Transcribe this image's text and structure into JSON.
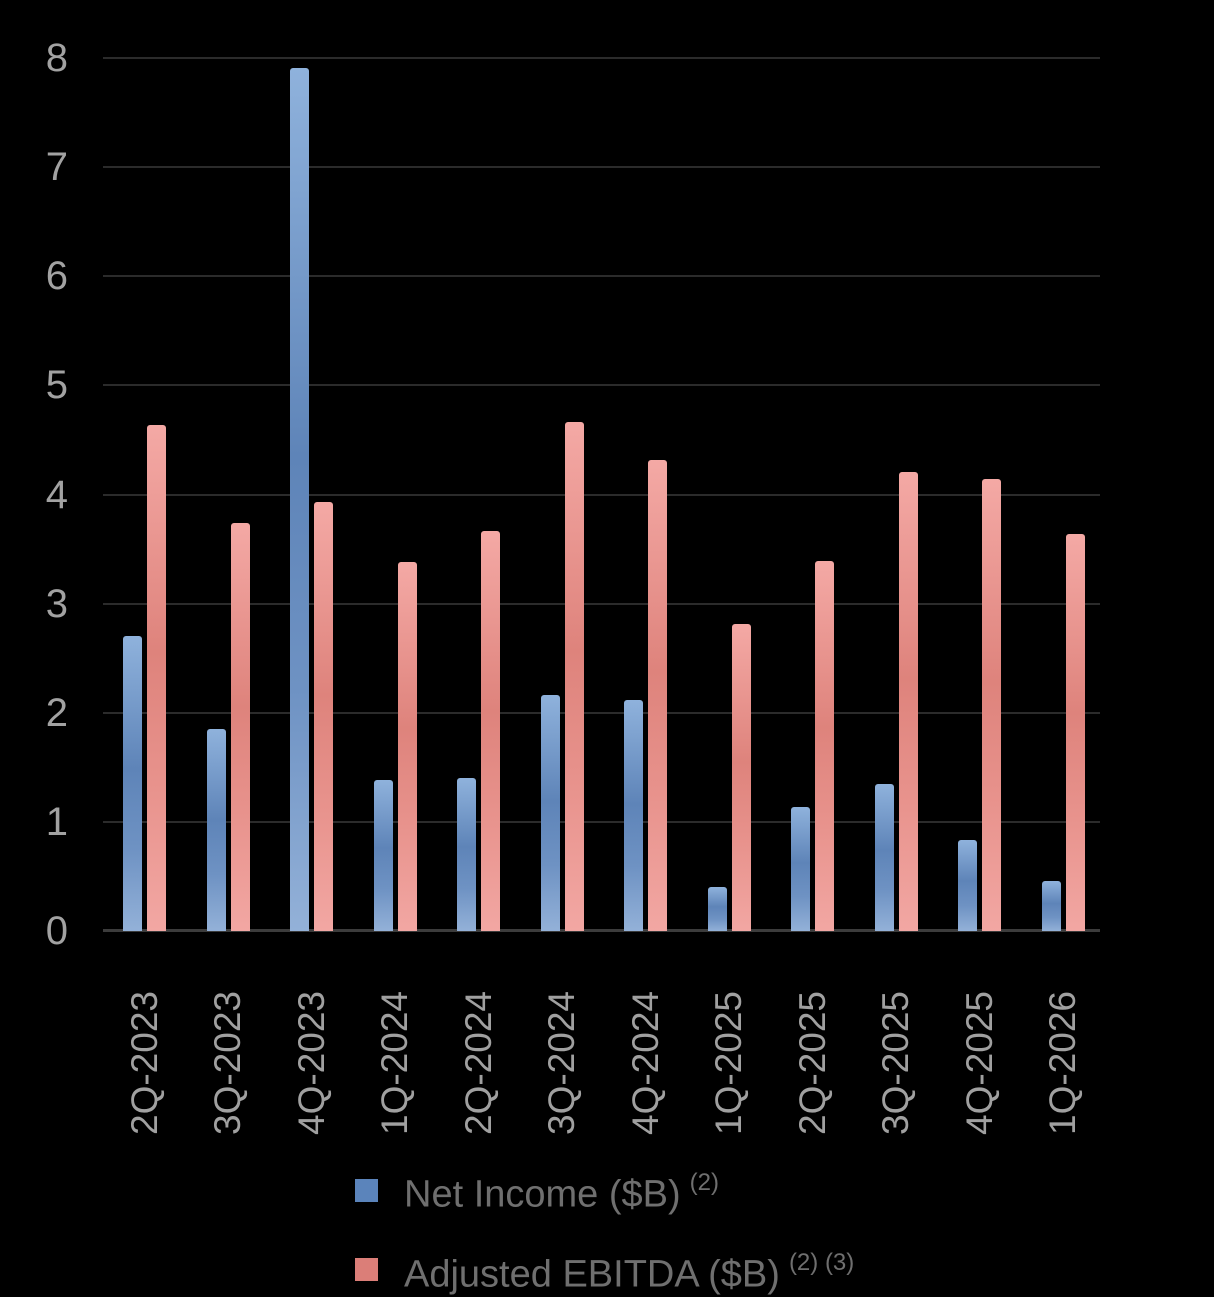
{
  "chart_data": {
    "type": "bar",
    "title": "",
    "xlabel": "",
    "ylabel": "",
    "background": "#000000",
    "grid": true,
    "legend_position": "bottom-center",
    "ylim": [
      0,
      8
    ],
    "yticks": [
      0,
      1,
      2,
      3,
      4,
      5,
      6,
      7,
      8
    ],
    "categories": [
      "2Q-2023",
      "3Q-2023",
      "4Q-2023",
      "1Q-2024",
      "2Q-2024",
      "3Q-2024",
      "4Q-2024",
      "1Q-2025",
      "2Q-2025",
      "3Q-2025",
      "4Q-2025",
      "1Q-2026"
    ],
    "series": [
      {
        "name": "Net Income ($B)",
        "superscript": "(2)",
        "legend_color": "#5B84BB",
        "values": [
          2.7,
          1.85,
          7.91,
          1.38,
          1.4,
          2.16,
          2.12,
          0.4,
          1.14,
          1.35,
          0.83,
          0.46
        ]
      },
      {
        "name": "Adjusted EBITDA ($B)",
        "superscript": "(2) (3)",
        "legend_color": "#DB7E78",
        "values": [
          4.64,
          3.74,
          3.93,
          3.38,
          3.67,
          4.66,
          4.32,
          2.81,
          3.39,
          4.21,
          4.14,
          3.64
        ]
      }
    ],
    "colors": {
      "axis_label_gray": "#a2a2a2",
      "x_label_gray": "#a0a0a0",
      "legend_text_gray": "#6f6f6f",
      "gridline": "#2b2b2b",
      "zero_line": "#3c3c3c"
    }
  }
}
